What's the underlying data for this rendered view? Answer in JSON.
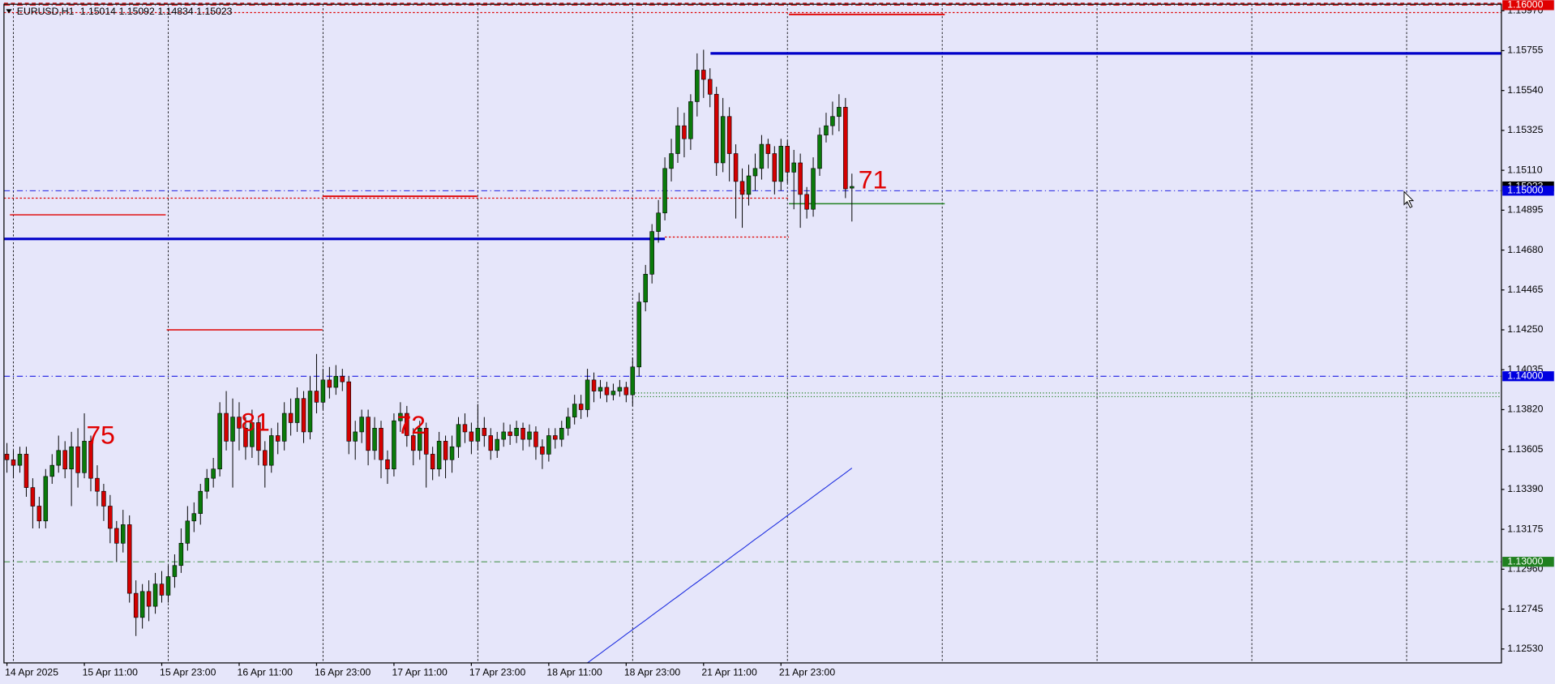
{
  "chart_data": {
    "type": "candlestick",
    "title": "EURUSD,H1",
    "up_color": "#0a7a0a",
    "down_color": "#d40000",
    "grid": true,
    "ylim": [
      1.12455,
      1.16005
    ],
    "yticks": [
      {
        "value": 1.1597,
        "label": "1.15970"
      },
      1.15755,
      {
        "value": 1.1554,
        "label": "1.15540"
      },
      1.15325,
      {
        "value": 1.1511,
        "label": "1.15110"
      },
      1.14895,
      {
        "value": 1.1468,
        "label": "1.14680"
      },
      1.14465,
      {
        "value": 1.1425,
        "label": "1.14250"
      },
      1.14035,
      {
        "value": 1.1382,
        "label": "1.13820"
      },
      1.13605,
      {
        "value": 1.1339,
        "label": "1.13390"
      },
      1.13175,
      {
        "value": 1.1296,
        "label": "1.12960"
      },
      1.12745,
      {
        "value": 1.1253,
        "label": "1.12530"
      }
    ],
    "categories": [
      "14 Apr 2025",
      null,
      null,
      null,
      null,
      null,
      null,
      null,
      null,
      null,
      null,
      null,
      "15 Apr 11:00",
      null,
      null,
      null,
      null,
      null,
      null,
      null,
      null,
      null,
      null,
      null,
      "15 Apr 23:00",
      null,
      null,
      null,
      null,
      null,
      null,
      null,
      null,
      null,
      null,
      null,
      "16 Apr 11:00",
      null,
      null,
      null,
      null,
      null,
      null,
      null,
      null,
      null,
      null,
      null,
      "16 Apr 23:00",
      null,
      null,
      null,
      null,
      null,
      null,
      null,
      null,
      null,
      null,
      null,
      "17 Apr 11:00",
      null,
      null,
      null,
      null,
      null,
      null,
      null,
      null,
      null,
      null,
      null,
      "17 Apr 23:00",
      null,
      null,
      null,
      null,
      null,
      null,
      null,
      null,
      null,
      null,
      null,
      "18 Apr 11:00",
      null,
      null,
      null,
      null,
      null,
      null,
      null,
      null,
      null,
      null,
      null,
      "18 Apr 23:00",
      null,
      null,
      null,
      null,
      null,
      null,
      null,
      null,
      null,
      null,
      null,
      "21 Apr 11:00",
      null,
      null,
      null,
      null,
      null,
      null,
      null,
      null,
      null,
      null,
      null,
      "21 Apr 23:00",
      null,
      null,
      null,
      null,
      null,
      null,
      null,
      null,
      null,
      null,
      null
    ],
    "candles": [
      [
        1.1358,
        1.1364,
        1.1348,
        1.1355
      ],
      [
        1.1355,
        1.136,
        1.1345,
        1.1352
      ],
      [
        1.1352,
        1.1362,
        1.1348,
        1.1358
      ],
      [
        1.1358,
        1.1362,
        1.1335,
        1.134
      ],
      [
        1.134,
        1.1345,
        1.1318,
        1.133
      ],
      [
        1.133,
        1.1335,
        1.1318,
        1.1322
      ],
      [
        1.1322,
        1.135,
        1.1318,
        1.1346
      ],
      [
        1.1346,
        1.1358,
        1.1342,
        1.1352
      ],
      [
        1.1352,
        1.1368,
        1.1348,
        1.136
      ],
      [
        1.136,
        1.1365,
        1.1345,
        1.135
      ],
      [
        1.135,
        1.137,
        1.133,
        1.1362
      ],
      [
        1.1362,
        1.1372,
        1.134,
        1.1348
      ],
      [
        1.1348,
        1.138,
        1.1345,
        1.1365
      ],
      [
        1.1365,
        1.1368,
        1.1338,
        1.1345
      ],
      [
        1.1345,
        1.1352,
        1.133,
        1.1338
      ],
      [
        1.1338,
        1.1342,
        1.1322,
        1.133
      ],
      [
        1.133,
        1.1336,
        1.131,
        1.1318
      ],
      [
        1.1318,
        1.1322,
        1.13,
        1.131
      ],
      [
        1.131,
        1.1328,
        1.1305,
        1.132
      ],
      [
        1.132,
        1.1325,
        1.1278,
        1.1283
      ],
      [
        1.1283,
        1.129,
        1.126,
        1.127
      ],
      [
        1.127,
        1.1288,
        1.1264,
        1.1284
      ],
      [
        1.1284,
        1.129,
        1.1268,
        1.1276
      ],
      [
        1.1276,
        1.1294,
        1.1272,
        1.1288
      ],
      [
        1.1288,
        1.1295,
        1.1278,
        1.1282
      ],
      [
        1.1282,
        1.1298,
        1.1278,
        1.1292
      ],
      [
        1.1292,
        1.1304,
        1.1286,
        1.1298
      ],
      [
        1.1298,
        1.1318,
        1.1294,
        1.131
      ],
      [
        1.131,
        1.133,
        1.1306,
        1.1322
      ],
      [
        1.1322,
        1.1332,
        1.1316,
        1.1326
      ],
      [
        1.1326,
        1.1342,
        1.132,
        1.1338
      ],
      [
        1.1338,
        1.135,
        1.1334,
        1.1345
      ],
      [
        1.1345,
        1.1356,
        1.134,
        1.135
      ],
      [
        1.135,
        1.1386,
        1.1346,
        1.138
      ],
      [
        1.138,
        1.1392,
        1.136,
        1.1365
      ],
      [
        1.1365,
        1.1388,
        1.134,
        1.1378
      ],
      [
        1.1378,
        1.1386,
        1.136,
        1.1372
      ],
      [
        1.1372,
        1.1378,
        1.1355,
        1.1362
      ],
      [
        1.1362,
        1.1382,
        1.1356,
        1.1375
      ],
      [
        1.1375,
        1.1378,
        1.1352,
        1.136
      ],
      [
        1.136,
        1.1365,
        1.134,
        1.1352
      ],
      [
        1.1352,
        1.1372,
        1.1348,
        1.1368
      ],
      [
        1.1368,
        1.1375,
        1.1358,
        1.1365
      ],
      [
        1.1365,
        1.1386,
        1.136,
        1.138
      ],
      [
        1.138,
        1.1388,
        1.1368,
        1.1375
      ],
      [
        1.1375,
        1.1394,
        1.137,
        1.1388
      ],
      [
        1.1388,
        1.1392,
        1.1364,
        1.137
      ],
      [
        1.137,
        1.14,
        1.1366,
        1.1392
      ],
      [
        1.1392,
        1.1412,
        1.138,
        1.1386
      ],
      [
        1.1386,
        1.1404,
        1.1382,
        1.1398
      ],
      [
        1.1398,
        1.1405,
        1.1388,
        1.1394
      ],
      [
        1.1394,
        1.1406,
        1.139,
        1.14
      ],
      [
        1.14,
        1.1404,
        1.1392,
        1.1397
      ],
      [
        1.1397,
        1.14,
        1.1358,
        1.1365
      ],
      [
        1.1365,
        1.1376,
        1.1355,
        1.137
      ],
      [
        1.137,
        1.1382,
        1.1364,
        1.1378
      ],
      [
        1.1378,
        1.1382,
        1.1352,
        1.136
      ],
      [
        1.136,
        1.1378,
        1.1355,
        1.1372
      ],
      [
        1.1372,
        1.1376,
        1.1345,
        1.1355
      ],
      [
        1.1355,
        1.136,
        1.1342,
        1.135
      ],
      [
        1.135,
        1.138,
        1.1346,
        1.1376
      ],
      [
        1.1376,
        1.1386,
        1.137,
        1.138
      ],
      [
        1.138,
        1.1384,
        1.1362,
        1.1368
      ],
      [
        1.1368,
        1.1372,
        1.1352,
        1.136
      ],
      [
        1.136,
        1.1376,
        1.1355,
        1.1372
      ],
      [
        1.1372,
        1.1375,
        1.134,
        1.1358
      ],
      [
        1.1358,
        1.1362,
        1.1344,
        1.135
      ],
      [
        1.135,
        1.137,
        1.1346,
        1.1365
      ],
      [
        1.1365,
        1.1368,
        1.1345,
        1.1355
      ],
      [
        1.1355,
        1.1368,
        1.1348,
        1.1362
      ],
      [
        1.1362,
        1.1378,
        1.1356,
        1.1374
      ],
      [
        1.1374,
        1.138,
        1.1364,
        1.137
      ],
      [
        1.137,
        1.1375,
        1.1358,
        1.1365
      ],
      [
        1.1365,
        1.1385,
        1.136,
        1.1372
      ],
      [
        1.1372,
        1.1378,
        1.1362,
        1.1368
      ],
      [
        1.1368,
        1.1372,
        1.1355,
        1.136
      ],
      [
        1.136,
        1.137,
        1.1356,
        1.1366
      ],
      [
        1.1366,
        1.1375,
        1.1362,
        1.137
      ],
      [
        1.137,
        1.1374,
        1.1363,
        1.1368
      ],
      [
        1.1368,
        1.1376,
        1.1364,
        1.1372
      ],
      [
        1.1372,
        1.1375,
        1.136,
        1.1366
      ],
      [
        1.1366,
        1.1374,
        1.1362,
        1.137
      ],
      [
        1.137,
        1.1373,
        1.1355,
        1.1362
      ],
      [
        1.1362,
        1.1366,
        1.135,
        1.1358
      ],
      [
        1.1358,
        1.1372,
        1.1354,
        1.1368
      ],
      [
        1.1368,
        1.1372,
        1.1361,
        1.1366
      ],
      [
        1.1366,
        1.1376,
        1.1362,
        1.1372
      ],
      [
        1.1372,
        1.1383,
        1.1368,
        1.1378
      ],
      [
        1.1378,
        1.139,
        1.1374,
        1.1385
      ],
      [
        1.1385,
        1.139,
        1.1377,
        1.1382
      ],
      [
        1.1382,
        1.1404,
        1.1378,
        1.1398
      ],
      [
        1.1398,
        1.1402,
        1.1386,
        1.1392
      ],
      [
        1.1392,
        1.1398,
        1.1388,
        1.1394
      ],
      [
        1.1394,
        1.1397,
        1.1386,
        1.139
      ],
      [
        1.139,
        1.1396,
        1.1387,
        1.1392
      ],
      [
        1.1392,
        1.1398,
        1.1389,
        1.1394
      ],
      [
        1.1394,
        1.1397,
        1.1386,
        1.139
      ],
      [
        1.139,
        1.141,
        1.1384,
        1.1405
      ],
      [
        1.1405,
        1.1445,
        1.14,
        1.144
      ],
      [
        1.144,
        1.146,
        1.1435,
        1.1455
      ],
      [
        1.1455,
        1.1482,
        1.145,
        1.1478
      ],
      [
        1.1478,
        1.1495,
        1.1472,
        1.1488
      ],
      [
        1.1488,
        1.1518,
        1.1484,
        1.1512
      ],
      [
        1.1512,
        1.1528,
        1.1505,
        1.152
      ],
      [
        1.152,
        1.1545,
        1.1515,
        1.1535
      ],
      [
        1.1535,
        1.1542,
        1.1518,
        1.1528
      ],
      [
        1.1528,
        1.1552,
        1.1522,
        1.1548
      ],
      [
        1.1548,
        1.1574,
        1.154,
        1.1565
      ],
      [
        1.1565,
        1.1576,
        1.155,
        1.156
      ],
      [
        1.156,
        1.1566,
        1.1545,
        1.1552
      ],
      [
        1.1552,
        1.1556,
        1.1508,
        1.1515
      ],
      [
        1.1515,
        1.155,
        1.151,
        1.154
      ],
      [
        1.154,
        1.1545,
        1.1505,
        1.152
      ],
      [
        1.152,
        1.1525,
        1.1485,
        1.1505
      ],
      [
        1.1505,
        1.1512,
        1.148,
        1.1498
      ],
      [
        1.1498,
        1.1514,
        1.1492,
        1.1508
      ],
      [
        1.1508,
        1.152,
        1.15,
        1.1512
      ],
      [
        1.1512,
        1.153,
        1.1506,
        1.1525
      ],
      [
        1.1525,
        1.1528,
        1.1512,
        1.152
      ],
      [
        1.152,
        1.1524,
        1.1498,
        1.1505
      ],
      [
        1.1505,
        1.1528,
        1.15,
        1.1524
      ],
      [
        1.1524,
        1.1527,
        1.1504,
        1.151
      ],
      [
        1.151,
        1.1522,
        1.149,
        1.1515
      ],
      [
        1.1515,
        1.152,
        1.148,
        1.1498
      ],
      [
        1.1498,
        1.1502,
        1.1485,
        1.149
      ],
      [
        1.149,
        1.1518,
        1.1486,
        1.1512
      ],
      [
        1.1512,
        1.1534,
        1.1508,
        1.153
      ],
      [
        1.153,
        1.1542,
        1.1526,
        1.1535
      ],
      [
        1.1535,
        1.1548,
        1.153,
        1.154
      ],
      [
        1.154,
        1.1552,
        1.1532,
        1.1545
      ],
      [
        1.1545,
        1.155,
        1.1496,
        1.1501
      ],
      [
        1.15014,
        1.15092,
        1.14834,
        1.15023
      ]
    ],
    "ma": {
      "color": "#2030e0",
      "values": [
        null,
        null,
        null,
        null,
        null,
        null,
        null,
        null,
        null,
        null,
        null,
        null,
        null,
        null,
        null,
        null,
        null,
        null,
        null,
        null,
        null,
        null,
        null,
        null,
        null,
        null,
        null,
        null,
        null,
        null,
        null,
        null,
        null,
        null,
        null,
        null,
        null,
        null,
        null,
        null,
        null,
        null,
        null,
        null,
        null,
        null,
        null,
        null,
        null,
        null,
        null,
        null,
        null,
        null,
        null,
        null,
        null,
        null,
        null,
        null,
        null,
        null,
        null,
        null,
        null,
        null,
        null,
        null,
        null,
        null,
        null,
        null,
        null,
        null,
        null,
        null,
        null,
        null,
        null,
        null,
        null,
        null,
        null,
        null,
        null,
        null,
        null,
        null,
        null,
        null,
        1.12455,
        1.12481,
        1.12506,
        1.12532,
        1.12557,
        1.12583,
        1.12609,
        1.12634,
        1.1266,
        1.12685,
        1.12711,
        1.12737,
        1.12762,
        1.12788,
        1.12813,
        1.12839,
        1.12865,
        1.1289,
        1.12916,
        1.12941,
        1.12967,
        1.12993,
        1.13018,
        1.13044,
        1.13069,
        1.13095,
        1.13121,
        1.13146,
        1.13172,
        1.13197,
        1.13223,
        1.13249,
        1.13274,
        1.133,
        1.13325,
        1.13351,
        1.13377,
        1.13402,
        1.13428,
        1.13453,
        1.13479,
        1.13505
      ]
    },
    "levels": [
      {
        "value": 1.15,
        "label": "1.15000",
        "color": "#0000e0"
      },
      {
        "value": 1.14,
        "label": "1.14000",
        "color": "#0000e0"
      },
      {
        "value": 1.13,
        "label": "1.13000",
        "color": "#208020"
      },
      {
        "value": 1.16,
        "label": "1.16000",
        "color": "#e00000"
      }
    ],
    "lines": [
      1.1487,
      1.1425,
      1.1497,
      1.1595,
      1.1474,
      1.1574,
      1.1493,
      1.1391,
      1.1389,
      1.1596,
      1.1496,
      1.1475
    ],
    "annotations": [
      "75",
      "81",
      "72",
      "71"
    ]
  }
}
